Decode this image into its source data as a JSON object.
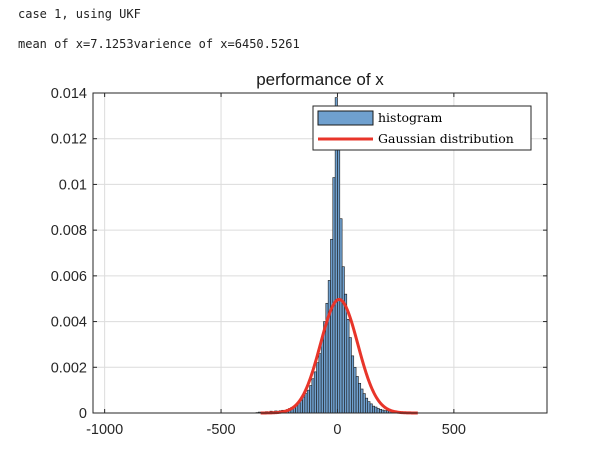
{
  "console": {
    "line1": "case 1, using UKF",
    "line2": "mean of x=7.1253varience of x=6450.5261"
  },
  "chart_data": {
    "type": "bar",
    "title": "performance of x",
    "xlabel": "",
    "ylabel": "",
    "xlim": [
      -1050,
      900
    ],
    "ylim": [
      0,
      0.014
    ],
    "xticks": [
      -1000,
      -500,
      0,
      500
    ],
    "xtick_labels": [
      "-1000",
      "-500",
      "0",
      "500"
    ],
    "yticks": [
      0,
      0.002,
      0.004,
      0.006,
      0.008,
      0.01,
      0.012,
      0.014
    ],
    "ytick_labels": [
      "0",
      "0.002",
      "0.004",
      "0.006",
      "0.008",
      "0.01",
      "0.012",
      "0.014"
    ],
    "grid": true,
    "legend_position": "top-right",
    "bar_color": "#6fa0cf",
    "line_color": "#e8352a",
    "bin_width": 10,
    "series": [
      {
        "name": "histogram",
        "type": "bar",
        "bin_centers": [
          -345,
          -335,
          -325,
          -315,
          -305,
          -295,
          -285,
          -275,
          -265,
          -255,
          -245,
          -235,
          -225,
          -215,
          -205,
          -195,
          -185,
          -175,
          -165,
          -155,
          -145,
          -135,
          -125,
          -115,
          -105,
          -95,
          -85,
          -75,
          -65,
          -55,
          -45,
          -35,
          -25,
          -15,
          -5,
          5,
          15,
          25,
          35,
          45,
          55,
          65,
          75,
          85,
          95,
          105,
          115,
          125,
          135,
          145,
          155,
          165,
          175,
          185,
          195,
          205,
          215,
          225,
          235,
          245,
          255,
          265,
          275,
          285,
          295,
          305,
          315,
          325,
          335,
          345
        ],
        "values": [
          2e-05,
          4e-05,
          3e-05,
          5e-05,
          6e-05,
          4e-05,
          8e-05,
          6e-05,
          9e-05,
          8e-05,
          0.0001,
          0.00012,
          0.0001,
          0.00015,
          0.0002,
          0.00025,
          0.00028,
          0.00035,
          0.00045,
          0.00055,
          0.0007,
          0.00085,
          0.001,
          0.0012,
          0.0015,
          0.0018,
          0.0022,
          0.0026,
          0.0032,
          0.004,
          0.0048,
          0.0058,
          0.0076,
          0.0103,
          0.0138,
          0.0117,
          0.0085,
          0.0064,
          0.0052,
          0.0041,
          0.0033,
          0.0025,
          0.002,
          0.0016,
          0.0013,
          0.00105,
          0.00085,
          0.00065,
          0.0005,
          0.0004,
          0.0003,
          0.00026,
          0.0002,
          0.00016,
          0.00013,
          0.0001,
          0.00011,
          8e-05,
          7e-05,
          6e-05,
          5e-05,
          4e-05,
          5e-05,
          3e-05,
          4e-05,
          2e-05,
          3e-05,
          2e-05,
          2e-05,
          1e-05
        ]
      },
      {
        "name": "Gaussian distribution",
        "type": "line",
        "mean": 7.1253,
        "variance": 6450.5261,
        "x_range": [
          -330,
          345
        ]
      }
    ]
  }
}
